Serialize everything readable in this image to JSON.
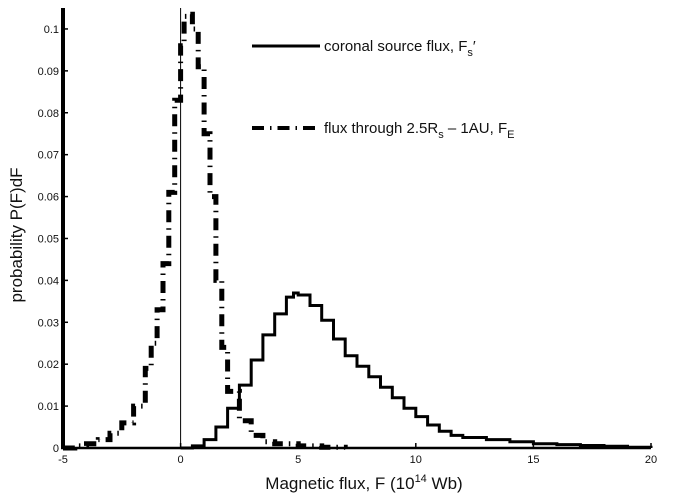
{
  "chart_data": {
    "type": "line",
    "title": "",
    "xlabel": "Magnetic flux, F (10",
    "xlabel_exp": "14",
    "xlabel_unit": " Wb)",
    "ylabel": "probability P(F)dF",
    "xlim": [
      -5,
      20
    ],
    "ylim": [
      0,
      0.105
    ],
    "x_ticks": [
      -5,
      0,
      5,
      10,
      15,
      20
    ],
    "x_tick_labels": [
      "-5",
      "0",
      "5",
      "10",
      "15",
      "20"
    ],
    "y_ticks": [
      0,
      0.01,
      0.02,
      0.03,
      0.04,
      0.05,
      0.06,
      0.07,
      0.08,
      0.09,
      0.1
    ],
    "y_tick_labels": [
      "0",
      "0.01",
      "0.02",
      "0.03",
      "0.04",
      "0.05",
      "0.06",
      "0.07",
      "0.08",
      "0.09",
      "0.1"
    ],
    "grid": false,
    "legend_position": "top-right",
    "legend": [
      {
        "style": "solid",
        "text": "coronal source flux, F",
        "sub": "s",
        "suffix": "′"
      },
      {
        "style": "dashdot",
        "text": "flux through 2.5R",
        "sub": "s",
        "mid": " – 1AU, F",
        "sub2": "E",
        "suffix": ""
      }
    ],
    "series": [
      {
        "style": "solid",
        "x": [
          0.0,
          0.5,
          1.0,
          1.5,
          2.0,
          2.5,
          3.0,
          3.5,
          4.0,
          4.5,
          4.8,
          5.0,
          5.5,
          6.0,
          6.5,
          7.0,
          7.5,
          8.0,
          8.5,
          9.0,
          9.5,
          10.0,
          10.5,
          11.0,
          11.5,
          12.0,
          13.0,
          14.0,
          15.0,
          16.0,
          17.0,
          18.0,
          19.0,
          20.0
        ],
        "y": [
          0.0,
          0.0005,
          0.002,
          0.005,
          0.0095,
          0.015,
          0.021,
          0.027,
          0.032,
          0.036,
          0.037,
          0.0365,
          0.034,
          0.0305,
          0.026,
          0.022,
          0.0195,
          0.017,
          0.0145,
          0.012,
          0.0095,
          0.0075,
          0.0055,
          0.004,
          0.003,
          0.0025,
          0.002,
          0.0015,
          0.001,
          0.0008,
          0.0006,
          0.0004,
          0.0002,
          0.0
        ]
      },
      {
        "style": "dashdot",
        "x": [
          -5.0,
          -4.5,
          -4.0,
          -3.5,
          -3.0,
          -2.5,
          -2.0,
          -1.5,
          -1.25,
          -1.0,
          -0.75,
          -0.5,
          -0.25,
          0.0,
          0.15,
          0.3,
          0.5,
          0.75,
          1.0,
          1.25,
          1.5,
          1.75,
          2.0,
          2.5,
          3.0,
          3.5,
          4.0,
          5.0,
          6.0,
          7.0
        ],
        "y": [
          0.0,
          0.0005,
          0.001,
          0.002,
          0.0035,
          0.006,
          0.01,
          0.019,
          0.025,
          0.033,
          0.044,
          0.061,
          0.083,
          0.096,
          0.103,
          0.1035,
          0.1,
          0.091,
          0.075,
          0.06,
          0.04,
          0.024,
          0.0135,
          0.0065,
          0.003,
          0.0015,
          0.001,
          0.0005,
          0.0002,
          0.0
        ]
      }
    ]
  }
}
